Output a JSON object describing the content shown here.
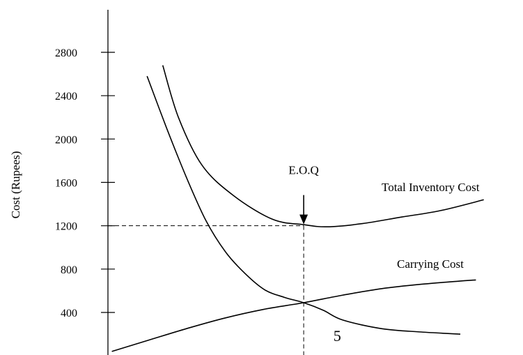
{
  "chart_data": {
    "type": "line",
    "title": "",
    "xlabel": "",
    "ylabel": "Cost (Rupees)",
    "ylim": [
      0,
      3100
    ],
    "xlim": [
      0,
      10
    ],
    "x_ticks": [],
    "y_ticks": [
      400,
      800,
      1200,
      1600,
      2000,
      2400,
      2800
    ],
    "grid": false,
    "series": [
      {
        "name": "Total Inventory Cost",
        "x": [
          1.4,
          1.8,
          2.4,
          3.2,
          4.2,
          5.0,
          5.6,
          6.5,
          7.5,
          8.5,
          9.6
        ],
        "y": [
          2680,
          2200,
          1760,
          1480,
          1260,
          1210,
          1190,
          1220,
          1280,
          1340,
          1440
        ]
      },
      {
        "name": "Carrying Cost",
        "x": [
          0.1,
          1.0,
          2.0,
          3.0,
          4.0,
          5.0,
          6.0,
          7.0,
          8.0,
          9.0,
          9.4
        ],
        "y": [
          40,
          140,
          250,
          350,
          430,
          490,
          560,
          620,
          660,
          690,
          700
        ]
      },
      {
        "name": "",
        "x": [
          1.0,
          1.5,
          2.0,
          2.5,
          3.0,
          3.5,
          4.0,
          4.5,
          5.0,
          5.5,
          6.0,
          7.0,
          8.0,
          9.0
        ],
        "y": [
          2580,
          2100,
          1650,
          1250,
          960,
          760,
          610,
          540,
          490,
          420,
          330,
          250,
          220,
          200
        ]
      }
    ],
    "annotations": [
      {
        "text": "E.O.Q",
        "x": 5.0,
        "y": 1200
      },
      {
        "text": "5",
        "x": 6.0
      }
    ],
    "eoq": {
      "x": 5.0,
      "y": 1200
    }
  }
}
